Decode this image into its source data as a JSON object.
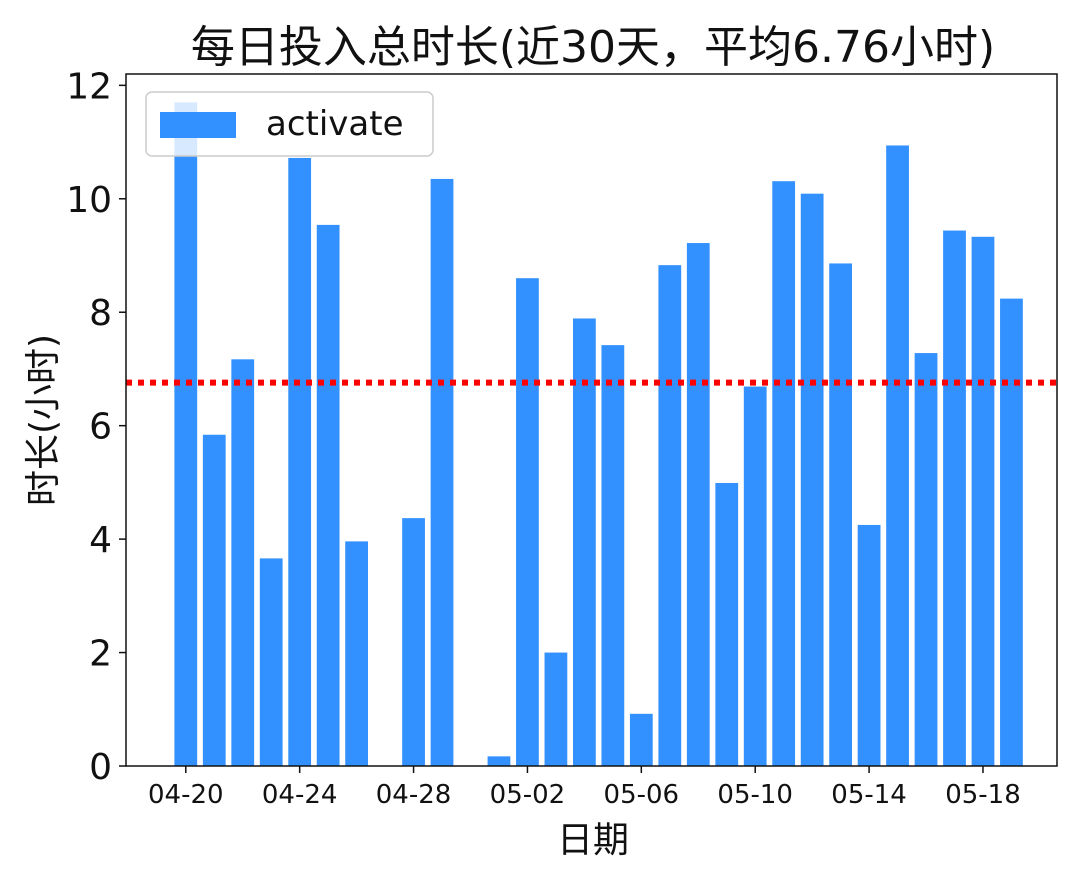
{
  "chart_data": {
    "type": "bar",
    "title": "每日投入总时长(近30天，平均6.76小时)",
    "xlabel": "日期",
    "ylabel": "时长(小时)",
    "ylim": [
      0,
      12.2
    ],
    "yticks": [
      0,
      2,
      4,
      6,
      8,
      10,
      12
    ],
    "x_start_date": "04-19",
    "xlim_day_offsets": [
      -1.1,
      31.6
    ],
    "xticks": [
      "04-20",
      "04-24",
      "04-28",
      "05-02",
      "05-06",
      "05-10",
      "05-14",
      "05-18"
    ],
    "bar_color": "#3391ff",
    "average": 6.76,
    "average_line_color": "#ff0000",
    "legend_position": "top-left",
    "grid": false,
    "series": [
      {
        "name": "activate",
        "dates": [
          "04-20",
          "04-21",
          "04-22",
          "04-23",
          "04-24",
          "04-25",
          "04-26",
          "04-27",
          "04-28",
          "04-29",
          "04-30",
          "05-01",
          "05-02",
          "05-03",
          "05-04",
          "05-05",
          "05-06",
          "05-07",
          "05-08",
          "05-09",
          "05-10",
          "05-11",
          "05-12",
          "05-13",
          "05-14",
          "05-15",
          "05-16",
          "05-17",
          "05-18",
          "05-19"
        ],
        "values": [
          11.7,
          5.84,
          7.17,
          3.66,
          10.72,
          9.54,
          3.96,
          0,
          4.37,
          10.35,
          0,
          0.17,
          8.6,
          2.0,
          7.89,
          7.42,
          0.92,
          8.83,
          9.22,
          4.99,
          6.69,
          10.31,
          10.09,
          8.86,
          4.25,
          10.94,
          7.28,
          9.44,
          9.33,
          8.24
        ]
      }
    ]
  }
}
